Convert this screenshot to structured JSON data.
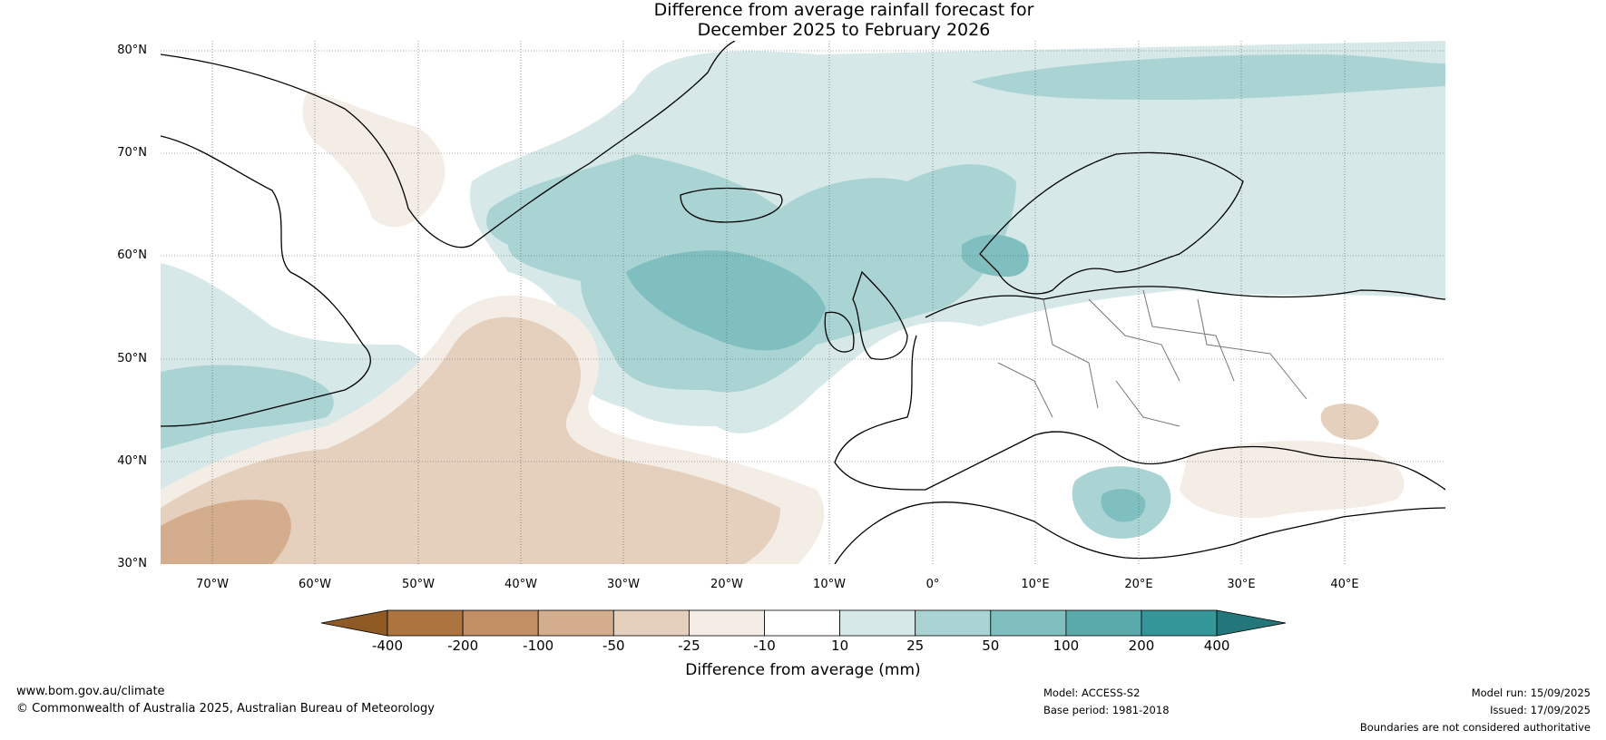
{
  "title": {
    "line1": "Difference from average rainfall forecast for",
    "line2": "December 2025 to February 2026"
  },
  "map": {
    "lat_labels": [
      "80°N",
      "70°N",
      "60°N",
      "50°N",
      "40°N",
      "30°N"
    ],
    "lon_labels": [
      "70°W",
      "60°W",
      "50°W",
      "40°W",
      "30°W",
      "20°W",
      "10°W",
      "0°",
      "10°E",
      "20°E",
      "30°E",
      "40°E"
    ]
  },
  "colorbar": {
    "tick_labels": [
      "-400",
      "-200",
      "-100",
      "-50",
      "-25",
      "-10",
      "10",
      "25",
      "50",
      "100",
      "200",
      "400"
    ],
    "colors": [
      "#8f5a24",
      "#ad743f",
      "#c28f64",
      "#d4ad8c",
      "#e5cfbd",
      "#f3ede6",
      "#ffffff",
      "#d6e9e8",
      "#a9d4d3",
      "#80bfbf",
      "#5aaaab",
      "#33979a",
      "#23777a"
    ],
    "title": "Difference from average (mm)"
  },
  "footer": {
    "website": "www.bom.gov.au/climate",
    "copyright": "© Commonwealth of Australia 2025, Australian Bureau of Meteorology",
    "model": "Model: ACCESS-S2",
    "base_period": "Base period: 1981-2018",
    "model_run": "Model run: 15/09/2025",
    "issued": "Issued: 17/09/2025",
    "disclaimer": "Boundaries are not considered authoritative"
  }
}
